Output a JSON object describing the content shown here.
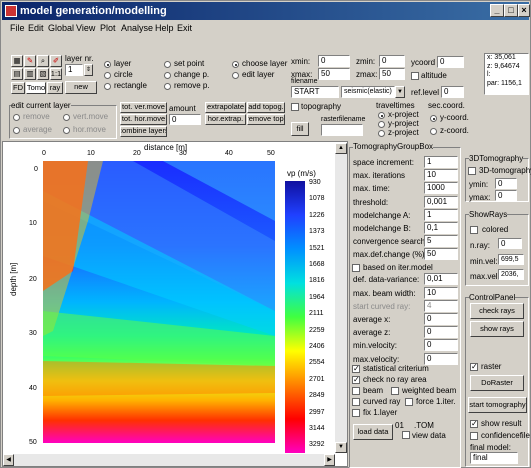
{
  "title": "model generation/modelling",
  "menu": [
    "File",
    "Edit",
    "Global",
    "View",
    "Plot",
    "Analyse",
    "Help",
    "Exit"
  ],
  "toolbar": {
    "layer_nr_label": "layer nr.",
    "layer_nr": "1",
    "new": "new",
    "tab_fd": "FD",
    "tab_tomo": "Tomo",
    "tab_ray": "ray",
    "zoom": "1:1"
  },
  "modes": {
    "layer": "layer",
    "circle": "circle",
    "rectangle": "rectangle",
    "set_point": "set point",
    "change_p": "change p.",
    "remove_p": "remove p.",
    "choose_layer": "choose layer",
    "edit_layer": "edit layer"
  },
  "coords": {
    "xmin_l": "xmin:",
    "xmin": "0",
    "xmax_l": "xmax:",
    "xmax": "50",
    "zmin_l": "zmin:",
    "zmin": "0",
    "zmax_l": "zmax:",
    "zmax": "50",
    "ycoord_l": "ycoord",
    "ycoord": "0",
    "altitude": "altitude",
    "filename_l": "filename",
    "filename": "START",
    "method": "seismic(elastic)",
    "reflevel_l": "ref.level",
    "reflevel": "0"
  },
  "readout": {
    "x": "x: 35,061",
    "z": "z: 9,64674",
    "l": "l:",
    "par": "par: 1156,1"
  },
  "editlayer": {
    "title": "edit current layer",
    "remove": "remove",
    "average": "average",
    "vert_move": "vert.move",
    "hor_move": "hor.move"
  },
  "ops": {
    "tot_ver_move": "tot. ver.move",
    "amount": "amount",
    "tot_hor_move": "tot. hor.move",
    "amount_val": "0",
    "combine": "combine layers",
    "extrapolate": "extrapolate",
    "add_topog": "add topog.",
    "hor_extrap": "hor.extrap.",
    "remove_top": "remove top.",
    "fill": "fill"
  },
  "topo": {
    "topography": "topography",
    "rasterfilename": "rasterfilename",
    "traveltimes": "traveltimes",
    "xproj": "x-project",
    "yproj": "y-project",
    "zproj": "z-project",
    "seccoord": "sec.coord.",
    "ycoord": "y-coord.",
    "zcoord": "z-coord."
  },
  "plot": {
    "xlabel": "distance [m]",
    "ylabel": "depth [m]",
    "xticks": [
      "0",
      "10",
      "20",
      "30",
      "40",
      "50"
    ],
    "yticks": [
      "0",
      "10",
      "20",
      "30",
      "40",
      "50"
    ]
  },
  "colorbar": {
    "title": "vp (m/s)",
    "values": [
      "930",
      "1078",
      "1226",
      "1373",
      "1521",
      "1668",
      "1816",
      "1964",
      "2111",
      "2259",
      "2406",
      "2554",
      "2701",
      "2849",
      "2997",
      "3144",
      "3292"
    ]
  },
  "tomo": {
    "title": "TomographyGroupBox",
    "space_inc_l": "space increment:",
    "space_inc": "1",
    "max_iter_l": "max. iterations",
    "max_iter": "10",
    "max_time_l": "max. time:",
    "max_time": "1000",
    "threshold_l": "threshold:",
    "threshold": "0,001",
    "mcA_l": "modelchange A:",
    "mcA": "1",
    "mcB_l": "modelchange B:",
    "mcB": "0,1",
    "conv_l": "convergence search:",
    "conv": "5",
    "maxdef_l": "max.def.change (%)",
    "maxdef": "50",
    "based_iter": "based on iter.model",
    "del_var_l": "def. data-variance:",
    "del_var": "0,01",
    "beam_l": "max. beam width:",
    "beam": "10",
    "curved_l": "start curved ray:",
    "curved": "4",
    "avgx_l": "average x:",
    "avgx": "0",
    "avgz_l": "average z:",
    "avgz": "0",
    "minvel_l": "min.velocity:",
    "minvel": "0",
    "maxvel_l": "max.velocity:",
    "maxvel": "0",
    "stat": "statistical criterium",
    "checknoray": "check no ray area",
    "beam_cb": "beam",
    "weighted": "weighted beam",
    "curved_cb": "curved ray",
    "force": "force 1.iter.",
    "fix": "fix 1.layer",
    "load": "load data",
    "tom_num": "01",
    "tom_ext": ".TOM",
    "viewdata": "view data"
  },
  "t3d": {
    "title": "3DTomography",
    "cb": "3D-tomography",
    "ymin_l": "ymin:",
    "ymin": "0",
    "ymax_l": "ymax:",
    "ymax": "0"
  },
  "showrays": {
    "title": "ShowRays",
    "colored": "colored",
    "nray_l": "n.ray:",
    "nray": "0",
    "minvel_l": "min.vel:",
    "minvel": "699,5",
    "maxvel_l": "max.vel:",
    "maxvel": "2036,"
  },
  "control": {
    "title": "ControlPanel",
    "check": "check rays",
    "show": "show rays",
    "raster": "raster",
    "doraster": "DoRaster",
    "start": "start tomography",
    "showresult": "show result",
    "confidence": "confidencefile",
    "finalmodel_l": "final model:",
    "finalmodel": "final"
  }
}
